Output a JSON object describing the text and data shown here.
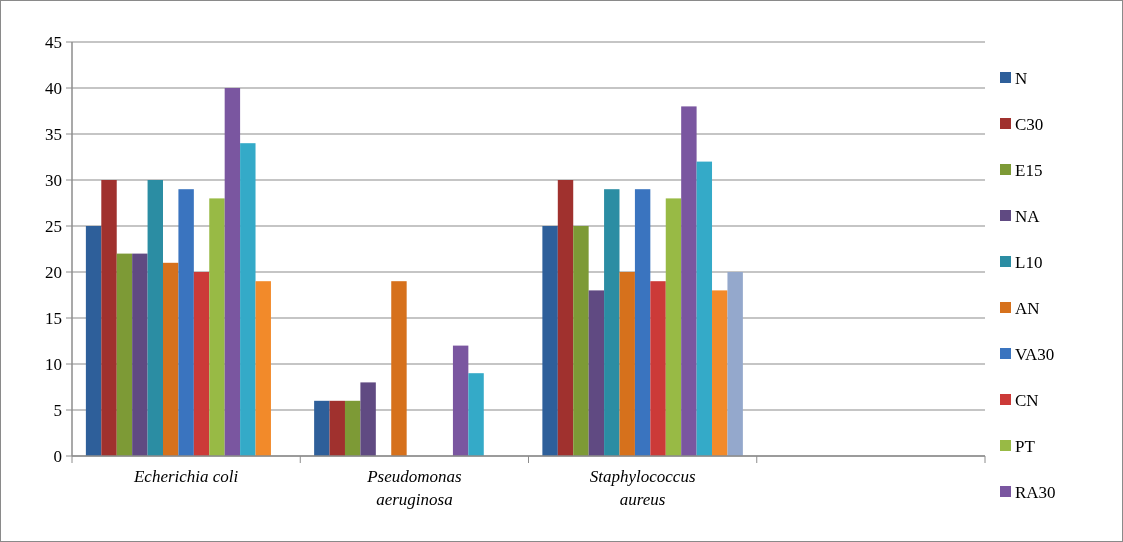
{
  "chart_data": {
    "type": "bar",
    "categories": [
      "Echerichia coli",
      "Pseudomonas aeruginosa",
      "Staphylococcus aureus",
      null
    ],
    "series": [
      {
        "name": "N",
        "color": "#2e5f9a",
        "values": [
          25,
          6,
          25,
          null
        ]
      },
      {
        "name": "C30",
        "color": "#a0312e",
        "values": [
          30,
          6,
          30,
          null
        ]
      },
      {
        "name": "E15",
        "color": "#7d9a36",
        "values": [
          22,
          6,
          25,
          null
        ]
      },
      {
        "name": "NA",
        "color": "#604a82",
        "values": [
          22,
          8,
          18,
          null
        ]
      },
      {
        "name": "L10",
        "color": "#2b8da3",
        "values": [
          30,
          null,
          29,
          null
        ]
      },
      {
        "name": "AN",
        "color": "#d6711c",
        "values": [
          21,
          19,
          20,
          null
        ]
      },
      {
        "name": "VA30",
        "color": "#3a74bf",
        "values": [
          29,
          null,
          29,
          null
        ]
      },
      {
        "name": "CN",
        "color": "#cc3a38",
        "values": [
          20,
          null,
          19,
          null
        ]
      },
      {
        "name": "PT",
        "color": "#98ba45",
        "values": [
          28,
          null,
          28,
          null
        ]
      },
      {
        "name": "RA30",
        "color": "#7a56a0",
        "values": [
          40,
          12,
          38,
          null
        ]
      },
      {
        "color": "#34aac8",
        "values": [
          34,
          9,
          32,
          null
        ]
      },
      {
        "color": "#f28a2a",
        "values": [
          19,
          null,
          18,
          null
        ]
      },
      {
        "color": "#94a8cc",
        "values": [
          null,
          null,
          20,
          null
        ]
      }
    ],
    "ylim": [
      0,
      45
    ],
    "yticks": [
      0,
      5,
      10,
      15,
      20,
      25,
      30,
      35,
      40,
      45
    ],
    "grid": "y",
    "legend": "right"
  }
}
